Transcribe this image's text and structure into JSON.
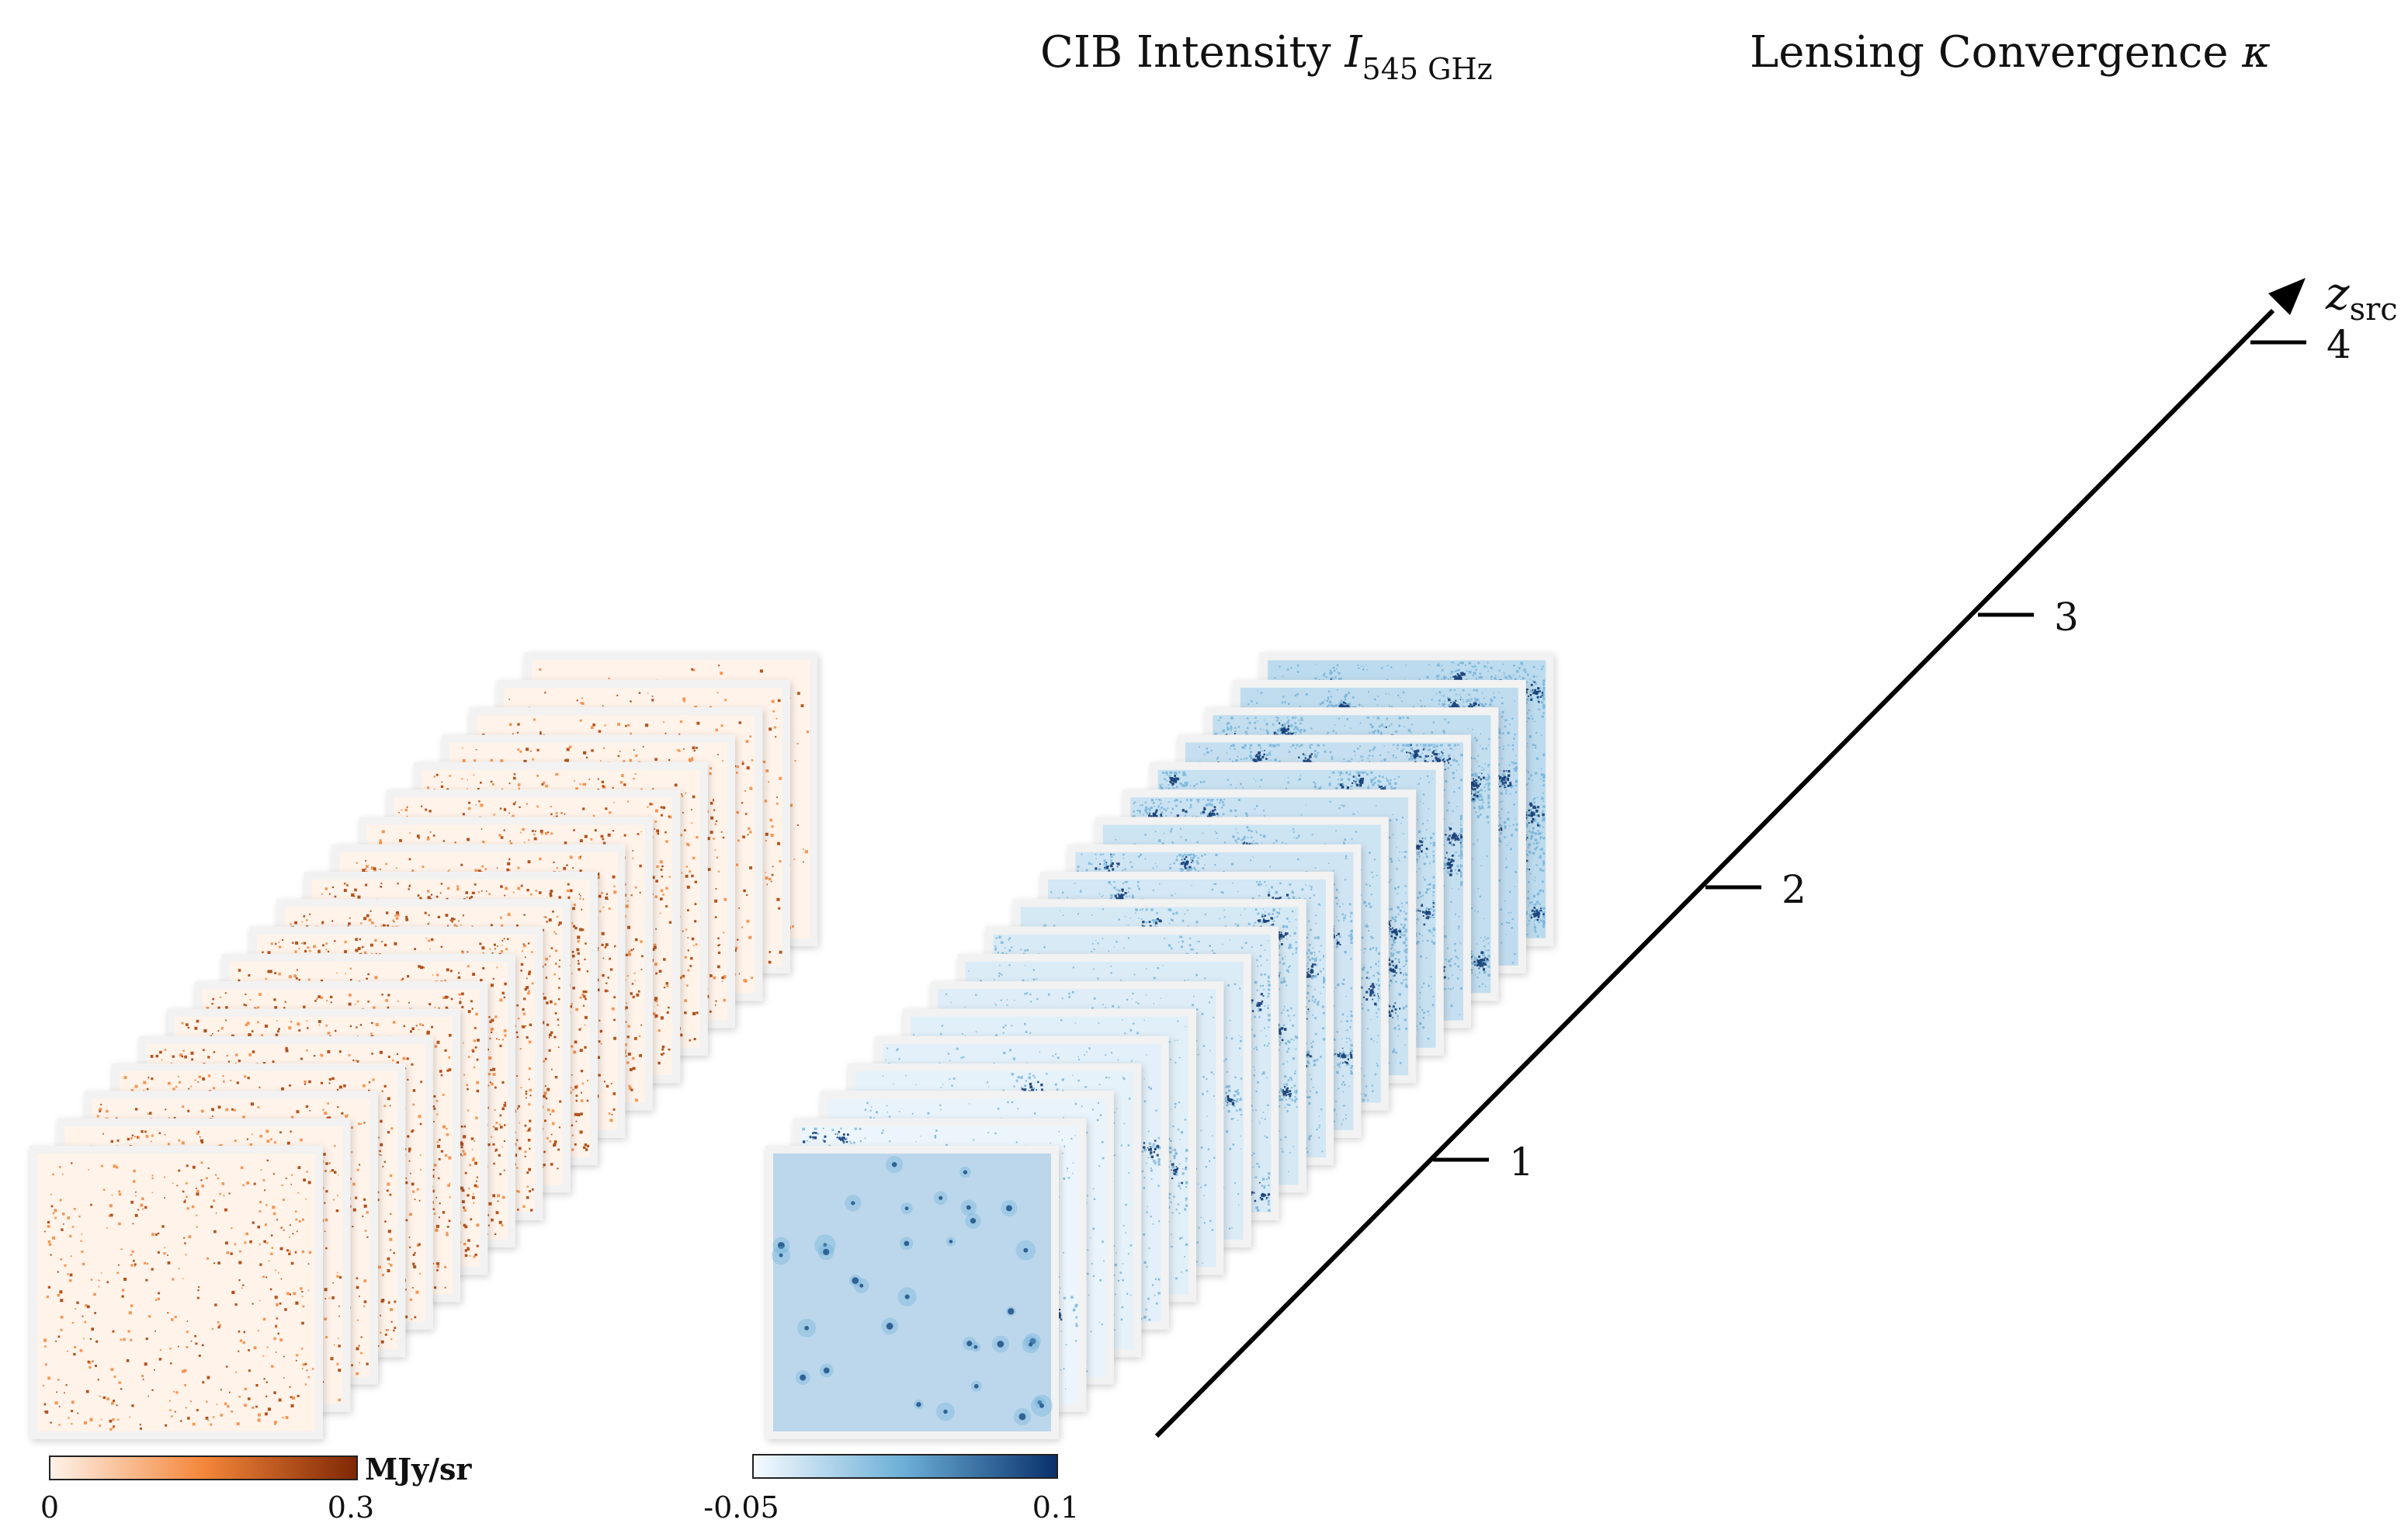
{
  "cib": {
    "title_main": "CIB Intensity ",
    "title_symbol": "I",
    "title_subscript": "545 GHz",
    "colors": {
      "low": "#fff3ea",
      "mid": "#f4863a",
      "high": "#7f2704"
    },
    "colorbar": {
      "min_label": "0",
      "max_label": "0.3",
      "unit_label": "MJy/sr"
    }
  },
  "kappa": {
    "title_main": "Lensing Convergence ",
    "title_symbol": "κ",
    "colors": {
      "low": "#f7fbff",
      "mid": "#6baed6",
      "high": "#08306b",
      "first_slice_bg": "#bcd7ec"
    },
    "colorbar": {
      "min_label": "-0.05",
      "max_label": "0.1"
    }
  },
  "axis": {
    "label_symbol": "z",
    "label_subscript": "src",
    "ticks": [
      {
        "label": "1",
        "value": 1
      },
      {
        "label": "2",
        "value": 2
      },
      {
        "label": "3",
        "value": 3
      },
      {
        "label": "4",
        "value": 4
      }
    ]
  },
  "slice_count": 19
}
